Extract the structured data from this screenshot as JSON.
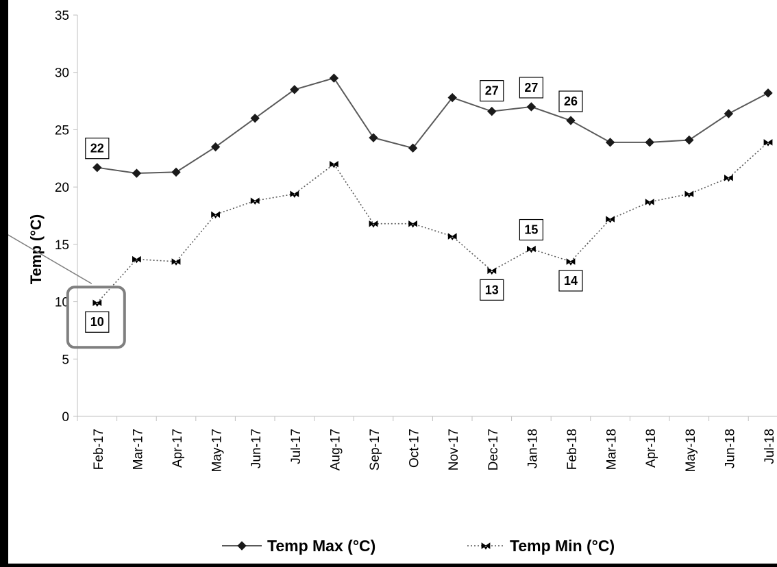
{
  "chart_data": {
    "type": "line",
    "ylabel": "Temp (°C)",
    "xlabel": "",
    "ylim": [
      0,
      35
    ],
    "yticks": [
      0,
      5,
      10,
      15,
      20,
      25,
      30,
      35
    ],
    "grid": false,
    "legend_position": "bottom",
    "categories": [
      "Feb-17",
      "Mar-17",
      "Apr-17",
      "May-17",
      "Jun-17",
      "Jul-17",
      "Aug-17",
      "Sep-17",
      "Oct-17",
      "Nov-17",
      "Dec-17",
      "Jan-18",
      "Feb-18",
      "Mar-18",
      "Apr-18",
      "May-18",
      "Jun-18",
      "Jul-18"
    ],
    "series": [
      {
        "name": "Temp Max  (°C)",
        "color": "#595959",
        "style": "solid",
        "marker": "diamond",
        "values": [
          21.7,
          21.2,
          21.3,
          23.5,
          26.0,
          28.5,
          29.5,
          24.3,
          23.4,
          27.8,
          26.6,
          27.0,
          25.8,
          23.9,
          23.9,
          24.1,
          26.4,
          28.2
        ],
        "data_labels": [
          {
            "index": 0,
            "text": "22"
          },
          {
            "index": 10,
            "text": "27"
          },
          {
            "index": 11,
            "text": "27"
          },
          {
            "index": 12,
            "text": "26"
          }
        ]
      },
      {
        "name": "Temp Min  (°C)",
        "color": "#595959",
        "style": "dotted",
        "marker": "bowtie",
        "values": [
          9.9,
          13.7,
          13.5,
          17.6,
          18.8,
          19.4,
          22.0,
          16.8,
          16.8,
          15.7,
          12.7,
          14.6,
          13.5,
          17.2,
          18.7,
          19.4,
          20.8,
          23.9
        ],
        "data_labels": [
          {
            "index": 0,
            "text": "10"
          },
          {
            "index": 10,
            "text": "13"
          },
          {
            "index": 11,
            "text": "15"
          },
          {
            "index": 12,
            "text": "14"
          }
        ]
      }
    ],
    "annotations": [
      {
        "type": "callout-box",
        "target_series": 1,
        "target_index": 0
      }
    ]
  }
}
